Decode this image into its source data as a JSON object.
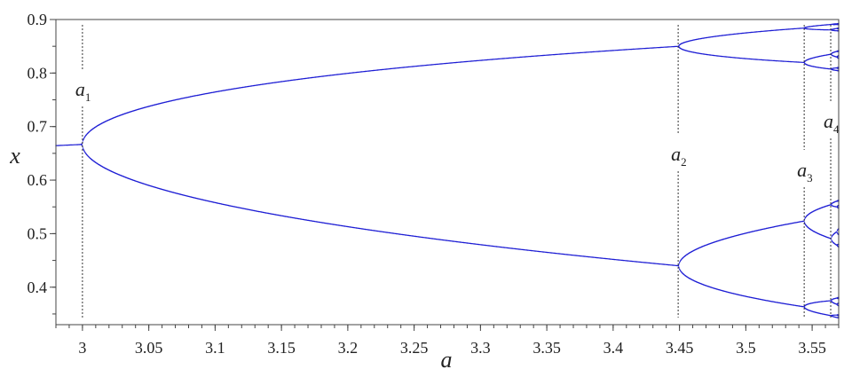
{
  "chart_data": {
    "type": "scatter",
    "title": "",
    "xlabel": "a",
    "ylabel": "x",
    "xlim": [
      2.98,
      3.57
    ],
    "ylim": [
      0.33,
      0.9
    ],
    "x_ticks": [
      "3",
      "3.05",
      "3.1",
      "3.15",
      "3.2",
      "3.25",
      "3.3",
      "3.35",
      "3.4",
      "3.45",
      "3.5",
      "3.55"
    ],
    "x_tick_values": [
      3,
      3.05,
      3.1,
      3.15,
      3.2,
      3.25,
      3.3,
      3.35,
      3.4,
      3.45,
      3.5,
      3.55
    ],
    "y_ticks": [
      "0.4",
      "0.5",
      "0.6",
      "0.7",
      "0.8",
      "0.9"
    ],
    "y_tick_values": [
      0.4,
      0.5,
      0.6,
      0.7,
      0.8,
      0.9
    ],
    "grid": false,
    "legend": "none",
    "series_color": "#1c1cd4",
    "bifurcation_markers": [
      {
        "label": "a",
        "subscript": "1",
        "a": 3.0
      },
      {
        "label": "a",
        "subscript": "2",
        "a": 3.449
      },
      {
        "label": "a",
        "subscript": "3",
        "a": 3.544
      },
      {
        "label": "a",
        "subscript": "4",
        "a": 3.564
      }
    ]
  }
}
